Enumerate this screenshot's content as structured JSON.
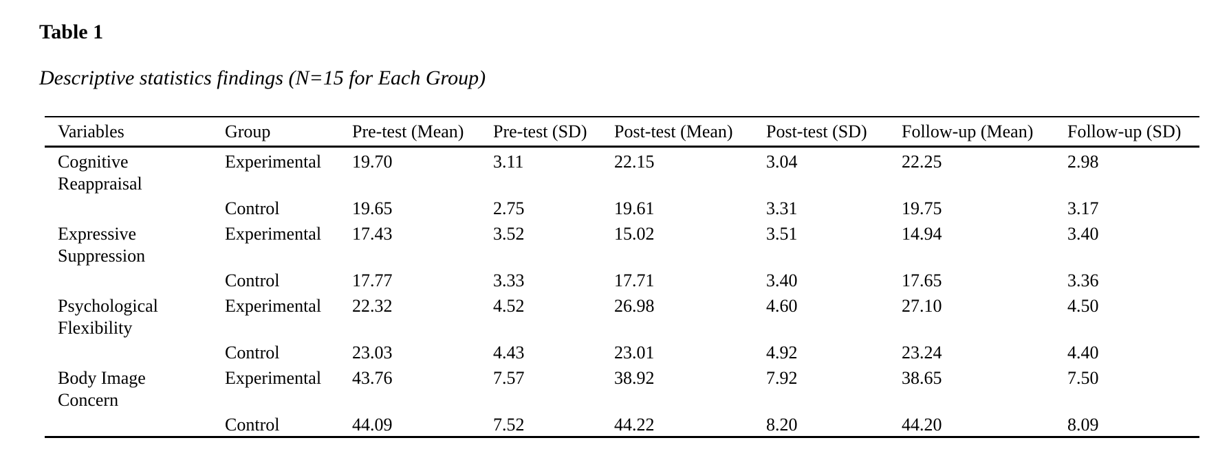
{
  "page": {
    "title": "Table 1",
    "subtitle": "Descriptive statistics findings (N=15 for Each Group)"
  },
  "table": {
    "columns": [
      "Variables",
      "Group",
      "Pre-test (Mean)",
      "Pre-test (SD)",
      "Post-test (Mean)",
      "Post-test (SD)",
      "Follow-up (Mean)",
      "Follow-up (SD)"
    ],
    "rows": [
      {
        "variable": "Cognitive Reappraisal",
        "group": "Experimental",
        "pre_mean": "19.70",
        "pre_sd": "3.11",
        "post_mean": "22.15",
        "post_sd": "3.04",
        "follow_mean": "22.25",
        "follow_sd": "2.98"
      },
      {
        "variable": "",
        "group": "Control",
        "pre_mean": "19.65",
        "pre_sd": "2.75",
        "post_mean": "19.61",
        "post_sd": "3.31",
        "follow_mean": "19.75",
        "follow_sd": "3.17"
      },
      {
        "variable": "Expressive Suppression",
        "group": "Experimental",
        "pre_mean": "17.43",
        "pre_sd": "3.52",
        "post_mean": "15.02",
        "post_sd": "3.51",
        "follow_mean": "14.94",
        "follow_sd": "3.40"
      },
      {
        "variable": "",
        "group": "Control",
        "pre_mean": "17.77",
        "pre_sd": "3.33",
        "post_mean": "17.71",
        "post_sd": "3.40",
        "follow_mean": "17.65",
        "follow_sd": "3.36"
      },
      {
        "variable": "Psychological Flexibility",
        "group": "Experimental",
        "pre_mean": "22.32",
        "pre_sd": "4.52",
        "post_mean": "26.98",
        "post_sd": "4.60",
        "follow_mean": "27.10",
        "follow_sd": "4.50"
      },
      {
        "variable": "",
        "group": "Control",
        "pre_mean": "23.03",
        "pre_sd": "4.43",
        "post_mean": "23.01",
        "post_sd": "4.92",
        "follow_mean": "23.24",
        "follow_sd": "4.40"
      },
      {
        "variable": "Body Image Concern",
        "group": "Experimental",
        "pre_mean": "43.76",
        "pre_sd": "7.57",
        "post_mean": "38.92",
        "post_sd": "7.92",
        "follow_mean": "38.65",
        "follow_sd": "7.50"
      },
      {
        "variable": "",
        "group": "Control",
        "pre_mean": "44.09",
        "pre_sd": "7.52",
        "post_mean": "44.22",
        "post_sd": "8.20",
        "follow_mean": "44.20",
        "follow_sd": "8.09"
      }
    ]
  }
}
